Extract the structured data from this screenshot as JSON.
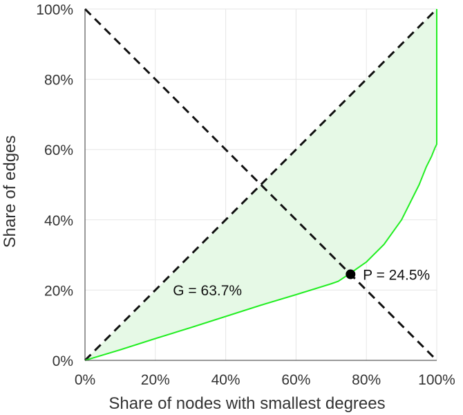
{
  "chart_data": {
    "type": "line",
    "title": "",
    "xlabel": "Share of nodes with smallest degrees",
    "ylabel": "Share of edges",
    "xlim": [
      0,
      100
    ],
    "ylim": [
      0,
      100
    ],
    "x_ticks": [
      "0%",
      "20%",
      "40%",
      "60%",
      "80%",
      "100%"
    ],
    "y_ticks": [
      "0%",
      "20%",
      "40%",
      "60%",
      "80%",
      "100%"
    ],
    "tick_values": [
      0,
      20,
      40,
      60,
      80,
      100
    ],
    "grid": true,
    "series": [
      {
        "kind": "lorenz-curve",
        "color": "#22ee22",
        "fill": "#e6f9e6",
        "x": [
          0,
          10,
          20,
          30,
          40,
          50,
          60,
          70,
          72,
          75,
          80,
          85,
          90,
          95,
          97,
          98.5,
          99.5,
          100,
          100
        ],
        "y": [
          0,
          3,
          6.2,
          9.3,
          12.5,
          15.7,
          18.7,
          21.8,
          22.5,
          24.5,
          28,
          33,
          40,
          50,
          55,
          58,
          60.5,
          61.5,
          100
        ]
      },
      {
        "kind": "equality-line",
        "color": "#111111",
        "dash": true,
        "x": [
          0,
          100
        ],
        "y": [
          0,
          100
        ]
      },
      {
        "kind": "anti-diagonal",
        "color": "#111111",
        "dash": true,
        "x": [
          0,
          100
        ],
        "y": [
          100,
          0
        ]
      }
    ],
    "point": {
      "x": 75.5,
      "y": 24.5,
      "color": "#000000"
    },
    "annotations": {
      "gini": "G = 63.7%",
      "p": "P = 24.5%"
    }
  }
}
